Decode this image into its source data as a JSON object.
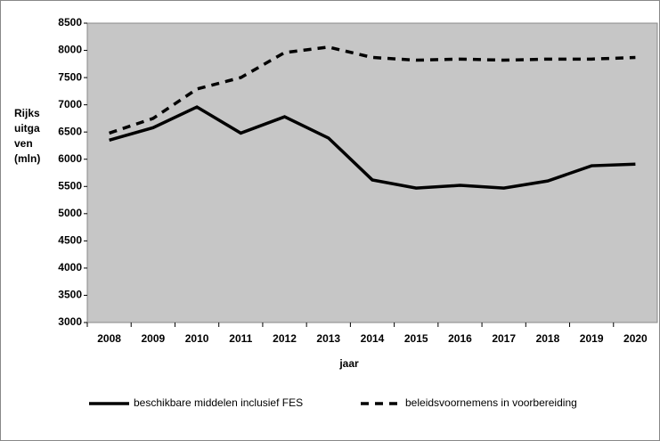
{
  "chart_data": {
    "type": "line",
    "y_label": [
      "Rijks",
      "uitga",
      "ven",
      "(mln)"
    ],
    "x_label": "jaar",
    "categories": [
      "2008",
      "2009",
      "2010",
      "2011",
      "2012",
      "2013",
      "2014",
      "2015",
      "2016",
      "2017",
      "2018",
      "2019",
      "2020"
    ],
    "series": [
      {
        "name": "beschikbare middelen inclusief FES",
        "color": "#000000",
        "dashed": false,
        "values": [
          6350,
          6580,
          6960,
          6480,
          6780,
          6390,
          5620,
          5470,
          5520,
          5470,
          5600,
          5880,
          5910
        ]
      },
      {
        "name": "beleidsvoornemens in voorbereiding",
        "color": "#000000",
        "dashed": true,
        "values": [
          6480,
          6750,
          7290,
          7500,
          7960,
          8060,
          7870,
          7820,
          7840,
          7820,
          7840,
          7840,
          7870
        ]
      }
    ],
    "ylim": [
      3000,
      8500
    ],
    "yticks": [
      3000,
      3500,
      4000,
      4500,
      5000,
      5500,
      6000,
      6500,
      7000,
      7500,
      8000,
      8500
    ],
    "grid": false
  }
}
